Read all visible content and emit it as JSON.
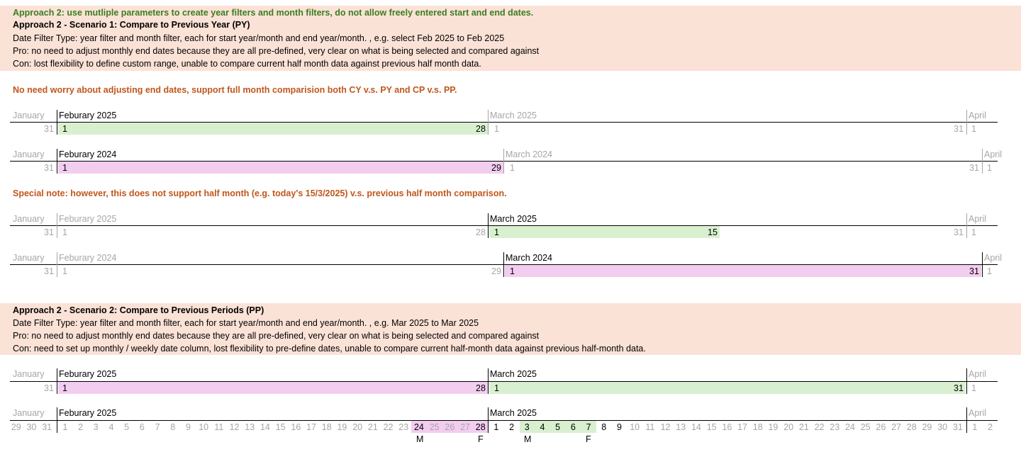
{
  "header": {
    "approach": "Approach 2: use mutliple parameters to create year filters and month filters, do not allow freely entered start and end dates.",
    "s1_title": "Approach 2 - Scenario 1: Compare to Previous Year (PY)",
    "s1_type": "Date Filter Type: year filter and month filter, each for start year/month and end year/month. , e.g. select Feb 2025 to Feb 2025",
    "s1_pro": "Pro: no need to adjust monthly end dates because they are all pre-defined, very clear on what is being selected and compared against",
    "s1_con": "Con: lost flexibility to define custom range, unable to compare current half month data against previous half month data."
  },
  "notes": {
    "no_need": "No need worry about adjusting end dates, support full month comparision both CY v.s. PY and CP v.s. PP.",
    "special": "Special note: however, this does not support half month (e.g. today's 15/3/2025) v.s. previous half month comparison."
  },
  "scenario2": {
    "title": "Approach 2 - Scenario 2: Compare to Previous Periods (PP)",
    "type": "Date Filter Type: year filter and month filter, each for start year/month and end year/month. , e.g. Mar 2025 to Mar 2025",
    "pro": "Pro: no need to adjust monthly end dates because they are all pre-defined, very clear on what is being selected and compared against",
    "con": "Con: need to set up monthly / weekly date column, lost flexibility to pre-define dates, unable to compare current half-month data against previous half-month data."
  },
  "timelines": {
    "t1": {
      "jan": "January",
      "feb": "Feburary 2025",
      "mar": "March 2025",
      "apr": "April",
      "d_jan_end": "31",
      "d_feb_start": "1",
      "d_feb_end": "28",
      "d_mar_start": "1",
      "d_mar_end": "31",
      "d_apr_start": "1"
    },
    "t2": {
      "jan": "January",
      "feb": "Feburary 2024",
      "mar": "March 2024",
      "apr": "April",
      "d_jan_end": "31",
      "d_feb_start": "1",
      "d_feb_end": "29",
      "d_mar_start": "1",
      "d_mar_end": "31",
      "d_apr_start": "1"
    },
    "t3": {
      "jan": "January",
      "feb": "Feburary 2025",
      "mar": "March 2025",
      "apr": "April",
      "d_jan_end": "31",
      "d_feb_start": "1",
      "d_feb_end": "28",
      "d_mar_start": "1",
      "d_mar_mid": "15",
      "d_mar_end": "31",
      "d_apr_start": "1"
    },
    "t4": {
      "jan": "January",
      "feb": "Feburary 2024",
      "mar": "March 2024",
      "apr": "April",
      "d_jan_end": "31",
      "d_feb_start": "1",
      "d_feb_end": "29",
      "d_mar_start": "1",
      "d_mar_end": "31",
      "d_apr_start": "1"
    },
    "t5": {
      "jan": "January",
      "feb": "Feburary 2025",
      "mar": "March 2025",
      "apr": "April",
      "d_jan_end": "31",
      "d_feb_start": "1",
      "d_feb_end": "28",
      "d_mar_start": "1",
      "d_mar_end": "31",
      "d_apr_start": "1"
    },
    "t6": {
      "jan": "January",
      "feb": "Feburary 2025",
      "mar": "March 2025",
      "apr": "April",
      "jan_days": [
        "29",
        "30",
        "31"
      ],
      "feb_days": [
        "1",
        "2",
        "3",
        "4",
        "5",
        "6",
        "7",
        "8",
        "9",
        "10",
        "11",
        "12",
        "13",
        "14",
        "15",
        "16",
        "17",
        "18",
        "19",
        "20",
        "21",
        "22",
        "23",
        "24",
        "25",
        "26",
        "27",
        "28"
      ],
      "mar_days": [
        "1",
        "2",
        "3",
        "4",
        "5",
        "6",
        "7",
        "8",
        "9",
        "10",
        "11",
        "12",
        "13",
        "14",
        "15",
        "16",
        "17",
        "18",
        "19",
        "20",
        "21",
        "22",
        "23",
        "24",
        "25",
        "26",
        "27",
        "28",
        "29",
        "30",
        "31"
      ],
      "apr_days": [
        "1",
        "2"
      ],
      "weekday_m": "M",
      "weekday_f": "F"
    }
  },
  "colors": {
    "green_fill": "#d8f0d0",
    "pink_fill": "#f2cdf0",
    "band": "#fbe2d6",
    "grey_text": "#a6a6a6"
  }
}
